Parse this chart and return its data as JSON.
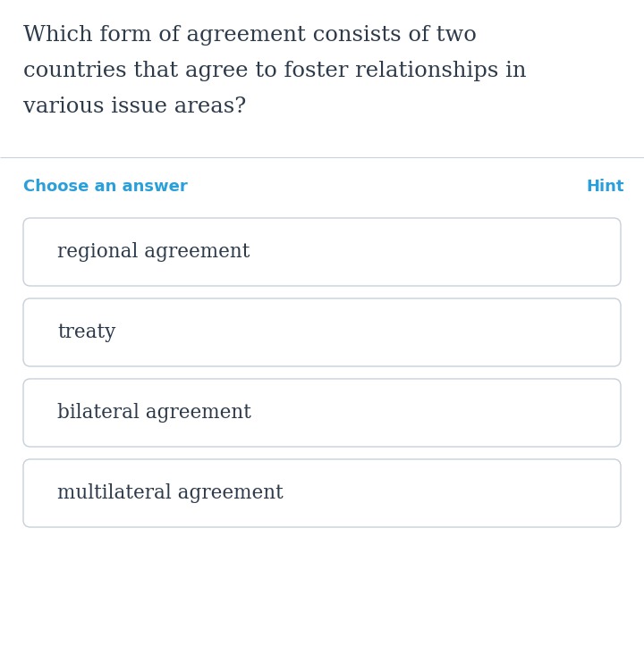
{
  "question_lines": [
    "Which form of agreement consists of two",
    "countries that agree to foster relationships in",
    "various issue areas?"
  ],
  "choose_label": "Choose an answer",
  "hint_label": "Hint",
  "options": [
    "regional agreement",
    "treaty",
    "bilateral agreement",
    "multilateral agreement"
  ],
  "bg_color": "#ffffff",
  "question_color": "#2d3a4a",
  "choose_color": "#2b9fd9",
  "hint_color": "#2b9fd9",
  "option_text_color": "#2d3a4a",
  "option_bg_color": "#ffffff",
  "option_border_color": "#c8d0da",
  "divider_color": "#c8d0da",
  "question_fontsize": 17.5,
  "choose_fontsize": 13,
  "hint_fontsize": 13,
  "option_fontsize": 15.5,
  "fig_width": 7.2,
  "fig_height": 7.32,
  "dpi": 100
}
